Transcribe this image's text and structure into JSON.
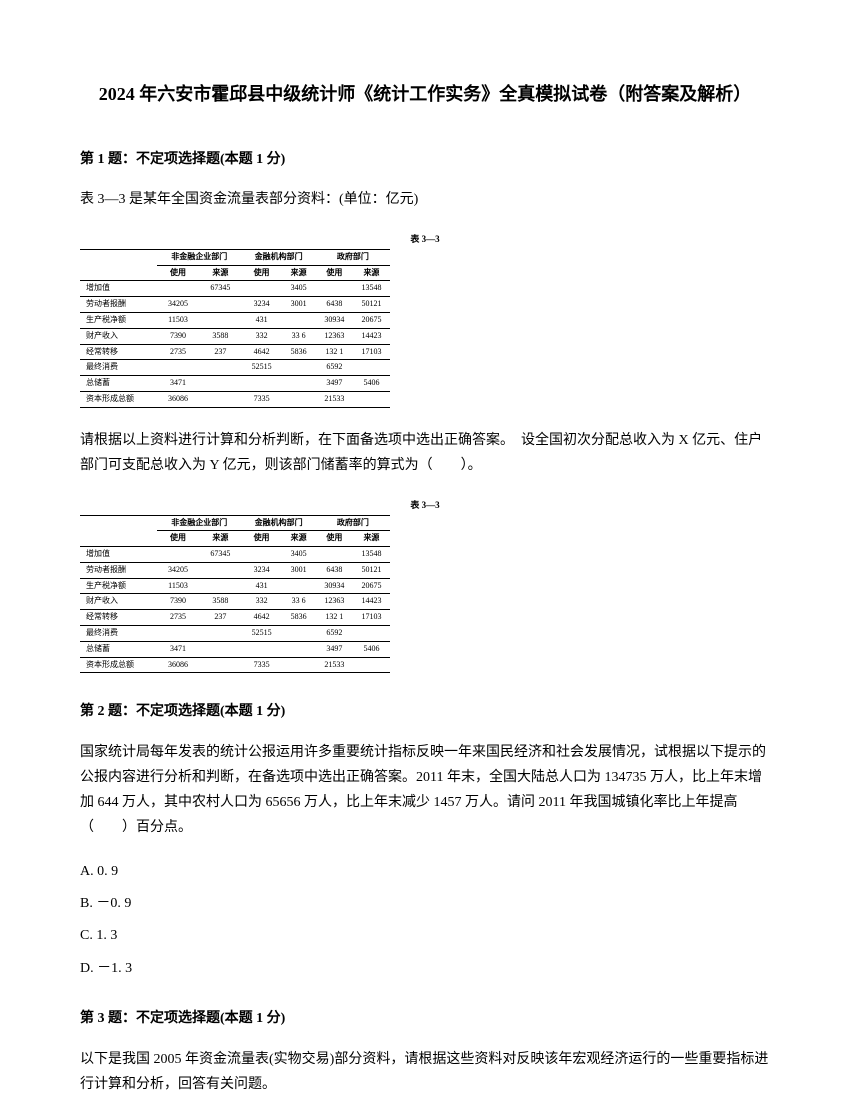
{
  "title": "2024 年六安市霍邱县中级统计师《统计工作实务》全真模拟试卷（附答案及解析）",
  "q1": {
    "header": "第 1 题：不定项选择题(本题 1 分)",
    "intro": "表 3—3 是某年全国资金流量表部分资料：(单位：亿元)",
    "body": "请根据以上资料进行计算和分析判断，在下面备选项中选出正确答案。　设全国初次分配总收入为 X 亿元、住户部门可支配总收入为 Y 亿元，则该部门储蓄率的算式为（　　）。"
  },
  "q2": {
    "header": "第 2 题：不定项选择题(本题 1 分)",
    "body": "国家统计局每年发表的统计公报运用许多重要统计指标反映一年来国民经济和社会发展情况，试根据以下提示的公报内容进行分析和判断，在备选项中选出正确答案。2011 年末，全国大陆总人口为 134735 万人，比上年末增加 644 万人，其中农村人口为 65656 万人，比上年末减少 1457 万人。请问 2011 年我国城镇化率比上年提高（　　）百分点。",
    "options": {
      "a": "A. 0. 9",
      "b": "B. －0. 9",
      "c": "C. 1. 3",
      "d": "D. －1. 3"
    }
  },
  "q3": {
    "header": "第 3 题：不定项选择题(本题 1 分)",
    "body": "以下是我国 2005 年资金流量表(实物交易)部分资料，请根据这些资料对反映该年宏观经济运行的一些重要指标进行计算和分析，回答有关问题。"
  },
  "table": {
    "title": "表 3—3",
    "group1": "非金融企业部门",
    "group2": "金融机构部门",
    "group3": "政府部门",
    "sub_shiyong": "使用",
    "sub_laiyuan": "来源",
    "rows": [
      {
        "label": "增加值",
        "c1": "",
        "c2": "67345",
        "c3": "",
        "c4": "3405",
        "c5": "",
        "c6": "13548"
      },
      {
        "label": "劳动者报酬",
        "c1": "34205",
        "c2": "",
        "c3": "3234",
        "c4": "3001",
        "c5": "6438",
        "c6": "50121"
      },
      {
        "label": "生产税净额",
        "c1": "11503",
        "c2": "",
        "c3": "431",
        "c4": "",
        "c5": "30934",
        "c6": "20675"
      },
      {
        "label": "财产收入",
        "c1": "7390",
        "c2": "3588",
        "c3": "332",
        "c4": "33 6",
        "c5": "12363",
        "c6": "14423"
      },
      {
        "label": "经常转移",
        "c1": "2735",
        "c2": "237",
        "c3": "4642",
        "c4": "5836",
        "c5": "132 1",
        "c6": "17103"
      },
      {
        "label": "最终消费",
        "c1": "",
        "c2": "",
        "c3": "52515",
        "c4": "",
        "c5": "6592",
        "c6": ""
      },
      {
        "label": "总储蓄",
        "c1": "3471",
        "c2": "",
        "c3": "",
        "c4": "",
        "c5": "3497",
        "c6": "5406"
      },
      {
        "label": "资本形成总额",
        "c1": "36086",
        "c2": "",
        "c3": "7335",
        "c4": "",
        "c5": "21533",
        "c6": ""
      }
    ]
  }
}
